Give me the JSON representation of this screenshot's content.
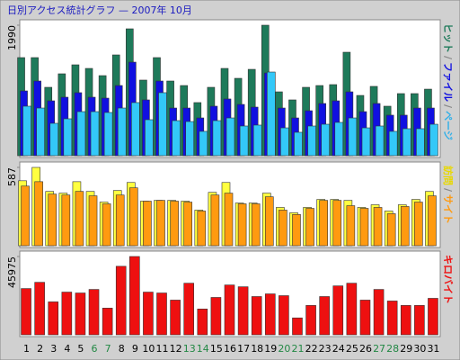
{
  "title": "日別アクセス統計グラフ — 2007年 10月",
  "categories": [
    "1",
    "2",
    "3",
    "4",
    "5",
    "6",
    "7",
    "8",
    "9",
    "10",
    "11",
    "12",
    "13",
    "14",
    "15",
    "16",
    "17",
    "18",
    "19",
    "20",
    "21",
    "22",
    "23",
    "24",
    "25",
    "26",
    "27",
    "28",
    "29",
    "30",
    "31"
  ],
  "category_colors": [
    "#000000",
    "#000000",
    "#000000",
    "#000000",
    "#000000",
    "#228844",
    "#228844",
    "#000000",
    "#000000",
    "#000000",
    "#000000",
    "#000000",
    "#228844",
    "#228844",
    "#000000",
    "#000000",
    "#000000",
    "#000000",
    "#000000",
    "#228844",
    "#228844",
    "#000000",
    "#000000",
    "#000000",
    "#000000",
    "#000000",
    "#228844",
    "#228844",
    "#000000",
    "#000000",
    "#000000"
  ],
  "chart_data": [
    {
      "type": "bar",
      "ylim": [
        0,
        1990
      ],
      "yticks": [
        1990
      ],
      "legend_separator": "/",
      "series": [
        {
          "name": "ヒット",
          "color": "#1e7a5a",
          "label_color": "#1e7a5a",
          "values": [
            1496,
            1496,
            1043,
            1249,
            1386,
            1331,
            1221,
            1537,
            1935,
            1153,
            1496,
            1139,
            1070,
            810,
            1043,
            1331,
            1180,
            1317,
            1990,
            974,
            851,
            1043,
            1070,
            1084,
            1578,
            919,
            1057,
            755,
            947,
            947,
            1015
          ]
        },
        {
          "name": "ファイル",
          "color": "#1010e0",
          "label_color": "#1010e0",
          "values": [
            988,
            1139,
            837,
            892,
            961,
            892,
            878,
            1070,
            1427,
            851,
            1139,
            727,
            727,
            576,
            755,
            865,
            782,
            741,
            1262,
            727,
            576,
            686,
            796,
            837,
            974,
            672,
            796,
            618,
            618,
            727,
            727
          ]
        },
        {
          "name": "ページ",
          "color": "#33c8f8",
          "label_color": "#33b0e8",
          "values": [
            755,
            727,
            494,
            563,
            672,
            672,
            659,
            727,
            810,
            549,
            961,
            535,
            521,
            371,
            535,
            576,
            453,
            467,
            1276,
            425,
            357,
            453,
            480,
            508,
            576,
            425,
            453,
            371,
            412,
            412,
            480
          ]
        }
      ]
    },
    {
      "type": "bar",
      "ylim": [
        0,
        587
      ],
      "yticks": [
        587
      ],
      "legend_separator": "/",
      "series": [
        {
          "name": "訪問",
          "color": "#ffff40",
          "label_color": "#e8d800",
          "values": [
            487,
            587,
            407,
            394,
            480,
            407,
            327,
            414,
            474,
            334,
            340,
            340,
            334,
            267,
            400,
            474,
            320,
            320,
            394,
            287,
            247,
            287,
            347,
            347,
            340,
            287,
            307,
            260,
            307,
            347,
            407
          ]
        },
        {
          "name": "サイト",
          "color": "#ff9a10",
          "label_color": "#ff9a10",
          "values": [
            447,
            480,
            387,
            380,
            407,
            374,
            314,
            380,
            434,
            334,
            340,
            334,
            327,
            260,
            380,
            394,
            314,
            314,
            367,
            267,
            234,
            280,
            340,
            340,
            300,
            280,
            287,
            240,
            294,
            327,
            374
          ]
        }
      ]
    },
    {
      "type": "bar",
      "ylim": [
        0,
        45975
      ],
      "yticks": [
        45975
      ],
      "legend_separator": "/",
      "series": [
        {
          "name": "キロバイト",
          "color": "#ee1010",
          "label_color": "#ee1010",
          "values": [
            27167,
            30824,
            19330,
            25077,
            24554,
            26645,
            15673,
            40228,
            45975,
            25077,
            24554,
            20375,
            30302,
            15151,
            21943,
            29257,
            28212,
            22465,
            24032,
            22988,
            9926,
            17241,
            22465,
            28735,
            30302,
            20375,
            26645,
            19853,
            17241,
            17241,
            21420
          ]
        }
      ]
    }
  ]
}
